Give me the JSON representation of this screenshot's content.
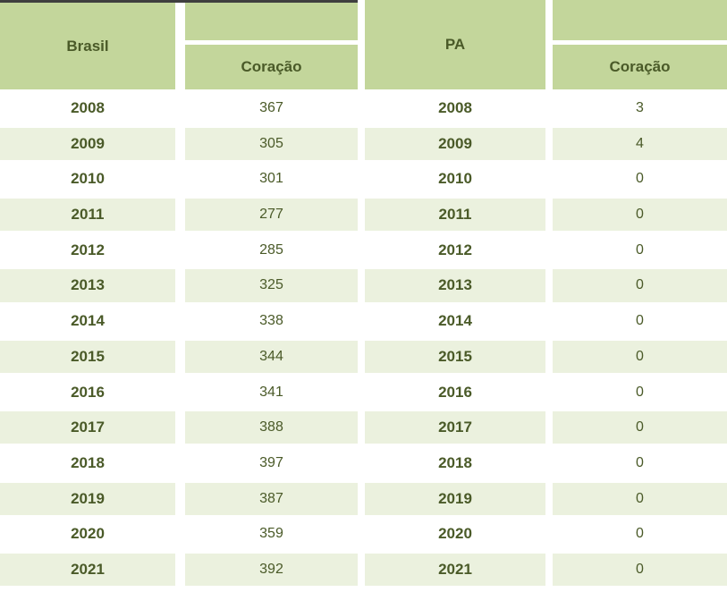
{
  "colors": {
    "background": "#ffffff",
    "header_green": "#c3d69b",
    "band_green": "#ebf1de",
    "text_olive": "#4a5a28",
    "top_border_dark": "#3f3f3f"
  },
  "tables": [
    {
      "region_label": "Brasil",
      "column_label": "Coração",
      "rows": [
        {
          "year": "2008",
          "value": "367"
        },
        {
          "year": "2009",
          "value": "305"
        },
        {
          "year": "2010",
          "value": "301"
        },
        {
          "year": "2011",
          "value": "277"
        },
        {
          "year": "2012",
          "value": "285"
        },
        {
          "year": "2013",
          "value": "325"
        },
        {
          "year": "2014",
          "value": "338"
        },
        {
          "year": "2015",
          "value": "344"
        },
        {
          "year": "2016",
          "value": "341"
        },
        {
          "year": "2017",
          "value": "388"
        },
        {
          "year": "2018",
          "value": "397"
        },
        {
          "year": "2019",
          "value": "387"
        },
        {
          "year": "2020",
          "value": "359"
        },
        {
          "year": "2021",
          "value": "392"
        }
      ]
    },
    {
      "region_label": "PA",
      "column_label": "Coração",
      "rows": [
        {
          "year": "2008",
          "value": "3"
        },
        {
          "year": "2009",
          "value": "4"
        },
        {
          "year": "2010",
          "value": "0"
        },
        {
          "year": "2011",
          "value": "0"
        },
        {
          "year": "2012",
          "value": "0"
        },
        {
          "year": "2013",
          "value": "0"
        },
        {
          "year": "2014",
          "value": "0"
        },
        {
          "year": "2015",
          "value": "0"
        },
        {
          "year": "2016",
          "value": "0"
        },
        {
          "year": "2017",
          "value": "0"
        },
        {
          "year": "2018",
          "value": "0"
        },
        {
          "year": "2019",
          "value": "0"
        },
        {
          "year": "2020",
          "value": "0"
        },
        {
          "year": "2021",
          "value": "0"
        }
      ]
    }
  ],
  "chart_data": {
    "type": "table",
    "title": "",
    "categories": [
      "2008",
      "2009",
      "2010",
      "2011",
      "2012",
      "2013",
      "2014",
      "2015",
      "2016",
      "2017",
      "2018",
      "2019",
      "2020",
      "2021"
    ],
    "series": [
      {
        "name": "Brasil - Coração",
        "values": [
          367,
          305,
          301,
          277,
          285,
          325,
          338,
          344,
          341,
          388,
          397,
          387,
          359,
          392
        ]
      },
      {
        "name": "PA - Coração",
        "values": [
          3,
          4,
          0,
          0,
          0,
          0,
          0,
          0,
          0,
          0,
          0,
          0,
          0,
          0
        ]
      }
    ],
    "layout": {
      "orientation": "two tables side by side",
      "banding": "alternate rows shaded light green starting white at 2008"
    }
  }
}
